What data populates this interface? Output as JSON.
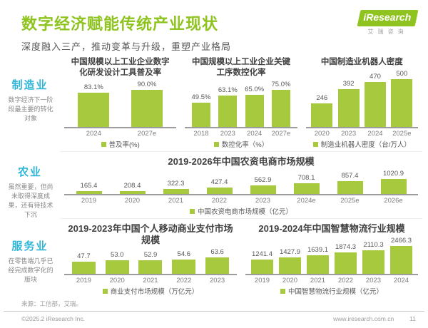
{
  "page": {
    "title": "数字经济赋能传统产业现状",
    "subtitle": "深度融入三产，推动变革与升级，重塑产业格局",
    "logo": {
      "brand_i": "i",
      "brand_rest": "Research",
      "brand_cn": "艾瑞咨询"
    },
    "footer": {
      "source": "来源：工信部，艾瑞。",
      "copyright": "©2025.2 iResearch Inc.",
      "website": "www.iresearch.com.cn",
      "page_number": "11"
    },
    "colors": {
      "brand_green": "#8fc31f",
      "bar_green": "#a6c93d",
      "section_cyan": "#2eb6d8",
      "axis_gray": "#9c9c9c"
    }
  },
  "sections": [
    {
      "label": "制造业",
      "description": "数字经济下一阶段最主要的转化对象"
    },
    {
      "label": "农业",
      "description": "虽然重要，但尚未取得深度成果，还有待技术下沉"
    },
    {
      "label": "服务业",
      "description": "在零售端几乎已经完成数字化的版块"
    }
  ],
  "chart_data": [
    {
      "type": "bar",
      "section": "制造业",
      "title": "中国规模以上工业企业数字化研发设计工具普及率",
      "categories": [
        "2024",
        "2027e"
      ],
      "values": [
        83.1,
        90.0
      ],
      "value_labels": [
        "83.1%",
        "90.0%"
      ],
      "legend": "普及率(%)",
      "ylim": [
        0,
        100
      ],
      "grid": false,
      "legend_position": "bottom"
    },
    {
      "type": "bar",
      "section": "制造业",
      "title": "中国规模以上工业企业关键工序数控化率",
      "categories": [
        "2018",
        "2023",
        "2024",
        "2027e"
      ],
      "values": [
        49.5,
        63.1,
        65.0,
        75.0
      ],
      "value_labels": [
        "49.5%",
        "63.1%",
        "65.0%",
        "75.0%"
      ],
      "legend": "数控化率（%）",
      "ylim": [
        0,
        100
      ],
      "grid": false,
      "legend_position": "bottom"
    },
    {
      "type": "bar",
      "section": "制造业",
      "title": "中国制造业机器人密度",
      "categories": [
        "2020",
        "2023",
        "2024",
        "2025e"
      ],
      "values": [
        246,
        392,
        470,
        500
      ],
      "value_labels": [
        "246",
        "392",
        "470",
        "500"
      ],
      "legend": "制造业机器人密度（台/万人）",
      "ylim": [
        0,
        550
      ],
      "grid": false,
      "legend_position": "bottom"
    },
    {
      "type": "bar",
      "section": "农业",
      "title": "2019-2026年中国农资电商市场规模",
      "categories": [
        "2019",
        "2020",
        "2021",
        "2022",
        "2023",
        "2024e",
        "2025e",
        "2026e"
      ],
      "values": [
        165.4,
        208.4,
        322.3,
        427.4,
        562.9,
        708.1,
        857.4,
        1020.9
      ],
      "value_labels": [
        "165.4",
        "208.4",
        "322.3",
        "427.4",
        "562.9",
        "708.1",
        "857.4",
        "1020.9"
      ],
      "legend": "中国农资电商市场规模（亿元）",
      "ylim": [
        0,
        1100
      ],
      "grid": false,
      "legend_position": "bottom"
    },
    {
      "type": "bar",
      "section": "服务业",
      "title": "2019-2023年中国个人移动商业支付市场规模",
      "categories": [
        "2019",
        "2020",
        "2021",
        "2022",
        "2023"
      ],
      "values": [
        47.7,
        53.0,
        52.9,
        54.6,
        63.6
      ],
      "value_labels": [
        "47.7",
        "53.0",
        "52.9",
        "54.6",
        "63.6"
      ],
      "legend": "商业支付市场规模（万亿元）",
      "ylim": [
        0,
        70
      ],
      "grid": false,
      "legend_position": "bottom"
    },
    {
      "type": "bar",
      "section": "服务业",
      "title": "2019-2024年中国智慧物流行业规模",
      "categories": [
        "2019",
        "2020",
        "2021",
        "2022",
        "2023",
        "2024"
      ],
      "values": [
        1241.4,
        1427.9,
        1639.1,
        1874.3,
        2110.3,
        2466.3
      ],
      "value_labels": [
        "1241.4",
        "1427.9",
        "1639.1",
        "1874.3",
        "2110.3",
        "2466.3"
      ],
      "legend": "中国智慧物流行业规模（亿元）",
      "ylim": [
        0,
        2700
      ],
      "grid": false,
      "legend_position": "bottom"
    }
  ]
}
